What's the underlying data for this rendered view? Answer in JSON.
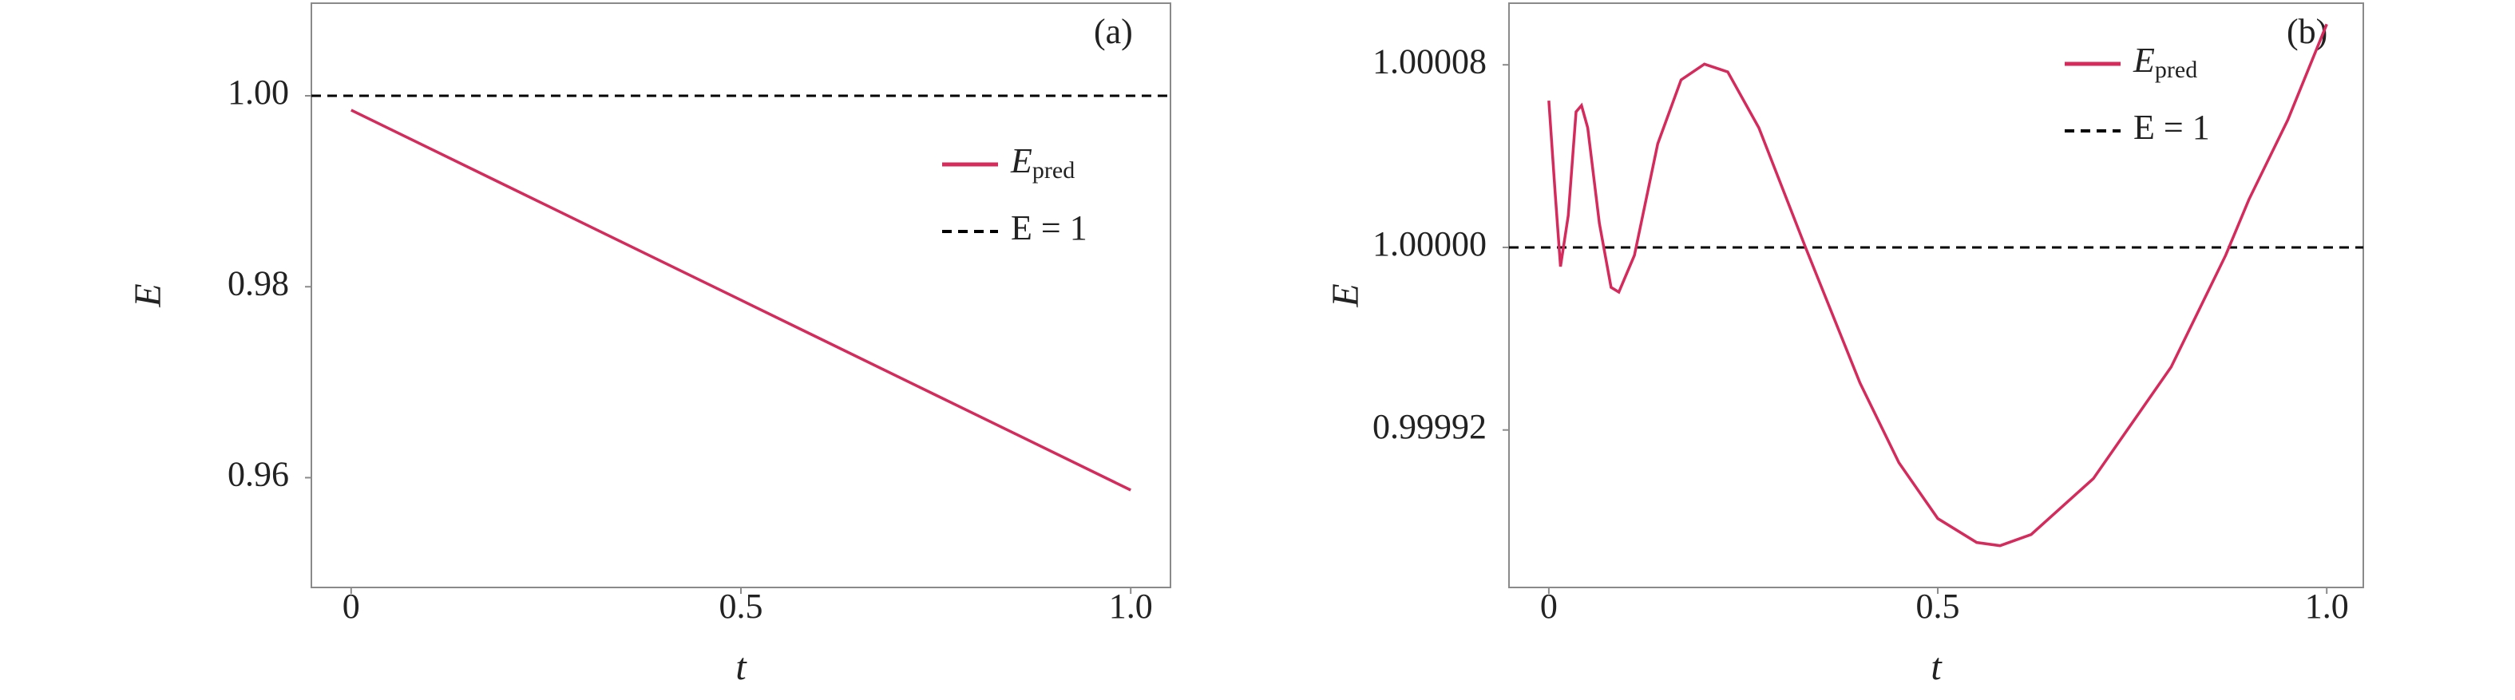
{
  "chart_data": [
    {
      "type": "line",
      "panel_label": "(a)",
      "xlabel": "t",
      "ylabel": "E",
      "xlim": [
        -0.051,
        1.051
      ],
      "ylim": [
        0.9485,
        1.0097
      ],
      "xticks": [
        0,
        0.5,
        {
          "value": 1.0,
          "label": "1.0"
        }
      ],
      "yticks": [
        {
          "value": 0.96,
          "label": "0.96"
        },
        {
          "value": 0.98,
          "label": "0.98"
        },
        {
          "value": 1.0,
          "label": "1.00"
        }
      ],
      "legend": "center right",
      "series": [
        {
          "name": "E",
          "name_sub": "pred",
          "color": "#d42a5c",
          "x": [
            0,
            0.25,
            0.5,
            0.75,
            1.0
          ],
          "values": [
            0.9985,
            0.98855,
            0.9786,
            0.96865,
            0.9587
          ]
        }
      ],
      "hlines": [
        {
          "name": "E = 1",
          "y": 1.0,
          "color": "#000000"
        }
      ]
    },
    {
      "type": "line",
      "panel_label": "(b)",
      "xlabel": "t",
      "ylabel": "E",
      "xlim": [
        -0.0512,
        1.047
      ],
      "ylim": [
        0.999851,
        1.000107
      ],
      "xticks": [
        0,
        0.5,
        {
          "value": 1.0,
          "label": "1.0"
        }
      ],
      "yticks": [
        0.99992,
        {
          "value": 1.0,
          "label": "1.00000"
        },
        1.00008
      ],
      "legend": "upper right",
      "series": [
        {
          "name": "E",
          "name_sub": "pred",
          "color": "#d42a5c",
          "x": [
            0,
            0.008,
            0.015,
            0.025,
            0.035,
            0.042,
            0.05,
            0.065,
            0.08,
            0.09,
            0.11,
            0.14,
            0.17,
            0.2,
            0.23,
            0.27,
            0.33,
            0.4,
            0.45,
            0.5,
            0.55,
            0.58,
            0.62,
            0.7,
            0.8,
            0.87,
            0.9,
            0.95,
            1.0
          ],
          "values": [
            1.0000643,
            1.0000245,
            0.9999916,
            1.000014,
            1.0000594,
            1.0000622,
            1.0000524,
            1.0000105,
            0.9999825,
            0.9999804,
            0.9999965,
            1.0000454,
            1.0000734,
            1.0000803,
            1.0000769,
            1.0000524,
            1.0,
            0.9999406,
            0.9999057,
            0.9998812,
            0.9998707,
            0.9998693,
            0.9998742,
            0.9998987,
            0.9999476,
            0.9999965,
            1.000021,
            1.0000559,
            1.0000978
          ]
        }
      ],
      "hlines": [
        {
          "name": "E = 1",
          "y": 1.0,
          "color": "#000000"
        }
      ]
    }
  ]
}
